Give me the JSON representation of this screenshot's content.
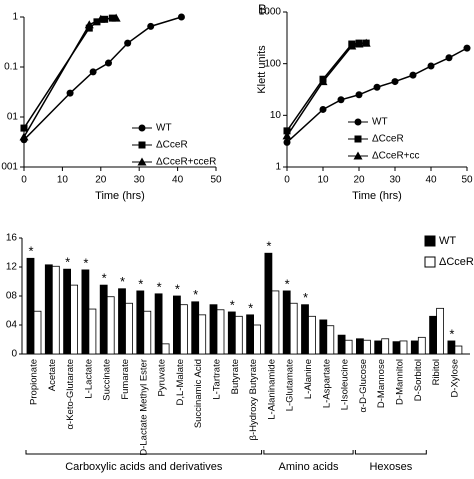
{
  "chart_data": [
    {
      "type": "line",
      "log_y": true,
      "xlabel": "Time (hrs)",
      "xlim": [
        0,
        50
      ],
      "xticks": [
        0,
        10,
        20,
        30,
        40,
        50
      ],
      "ylim": [
        0.001,
        1
      ],
      "yticks": [
        1,
        0.1,
        {
          "value": 0.01,
          "label": "01"
        },
        {
          "value": 0.001,
          "label": "001"
        }
      ],
      "series": [
        {
          "name": "WT",
          "color": "#000000",
          "marker": "circle",
          "x": [
            0,
            12,
            18,
            22,
            27,
            33,
            41
          ],
          "values": [
            0.0035,
            0.03,
            0.08,
            0.12,
            0.3,
            0.65,
            1
          ]
        },
        {
          "name": "ΔCceR",
          "color": "#000000",
          "marker": "square",
          "x": [
            0,
            17,
            19,
            21,
            23
          ],
          "values": [
            0.006,
            0.6,
            0.8,
            0.9,
            0.95
          ]
        },
        {
          "name": "ΔCceR+cceR",
          "color": "#000000",
          "marker": "triangle",
          "x": [
            0,
            17,
            20,
            24
          ],
          "values": [
            0.004,
            0.7,
            0.9,
            0.95
          ]
        }
      ]
    },
    {
      "type": "line",
      "log_y": true,
      "title": "B.",
      "xlabel": "Time (hrs)",
      "ylabel": "Klett units",
      "xlim": [
        0,
        50
      ],
      "xticks": [
        0,
        10,
        20,
        30,
        40,
        50
      ],
      "ylim": [
        1,
        1000
      ],
      "yticks": [
        1000,
        100,
        10,
        1
      ],
      "series": [
        {
          "name": "WT",
          "color": "#000000",
          "marker": "circle",
          "x": [
            0,
            10,
            15,
            20,
            25,
            30,
            35,
            40,
            45,
            50
          ],
          "values": [
            3,
            13,
            20,
            25,
            35,
            45,
            60,
            90,
            130,
            200
          ]
        },
        {
          "name": "ΔCceR",
          "color": "#000000",
          "marker": "square",
          "x": [
            0,
            10,
            18,
            20,
            22
          ],
          "values": [
            5,
            50,
            240,
            250,
            250
          ]
        },
        {
          "name": "ΔCceR+cc",
          "color": "#000000",
          "marker": "triangle",
          "x": [
            0,
            10,
            18,
            20,
            22
          ],
          "values": [
            4,
            45,
            220,
            240,
            250
          ]
        }
      ]
    },
    {
      "type": "bar",
      "ylim": [
        0,
        1.6
      ],
      "yticks": [
        {
          "value": 1.6,
          "label": "16"
        },
        {
          "value": 1.2,
          "label": "12"
        },
        {
          "value": 0.8,
          "label": "08"
        },
        {
          "value": 0.4,
          "label": "04"
        },
        0
      ],
      "categories": [
        "Propionate",
        "Acetate",
        "α-Keto-Glutarate",
        "L-Lactate",
        "Succinate",
        "Fumarate",
        "D-Lactate Methyl Ester",
        "Pyruvate",
        "D,L-Malate",
        "Succinamic Acid",
        "L-Tartrate",
        "Butyrate",
        "β-Hydroxy Butyrate",
        "L-Alaninamide",
        "L-Glutamate",
        "L-Alanine",
        "L-Aspartate",
        "L-Isoleucine",
        "α-D-Glucose",
        "D-Mannose",
        "D-Mannitol",
        "D-Sorbitol",
        "Ribitol",
        "D-Xylose"
      ],
      "markers": [
        "*",
        null,
        "*",
        "*",
        "*",
        "*",
        "*",
        "*",
        "*",
        "*",
        null,
        "*",
        "*",
        "*",
        "*",
        "*",
        null,
        null,
        null,
        null,
        null,
        null,
        null,
        "*"
      ],
      "series": [
        {
          "name": "WT",
          "color": "#000000",
          "values": [
            1.32,
            1.23,
            1.17,
            1.16,
            0.95,
            0.9,
            0.87,
            0.83,
            0.8,
            0.72,
            0.68,
            0.58,
            0.54,
            1.39,
            0.87,
            0.68,
            0.47,
            0.26,
            0.21,
            0.18,
            0.17,
            0.18,
            0.52,
            0.18
          ]
        },
        {
          "name": "ΔCceR",
          "color": "#ffffff",
          "values": [
            0.59,
            1.21,
            0.95,
            0.62,
            0.79,
            0.7,
            0.59,
            0.14,
            0.68,
            0.54,
            0.61,
            0.52,
            0.4,
            0.87,
            0.7,
            0.52,
            0.39,
            0.19,
            0.19,
            0.21,
            0.18,
            0.23,
            0.63,
            0.11
          ]
        }
      ],
      "groups": [
        {
          "label": "Carboxylic acids and derivatives",
          "first": "Propionate",
          "last": "β-Hydroxy Butyrate"
        },
        {
          "label": "Amino acids",
          "first": "L-Alaninamide",
          "last": "L-Isoleucine"
        },
        {
          "label": "Hexoses",
          "first": "α-D-Glucose",
          "last": "D-Sorbitol"
        }
      ]
    }
  ]
}
